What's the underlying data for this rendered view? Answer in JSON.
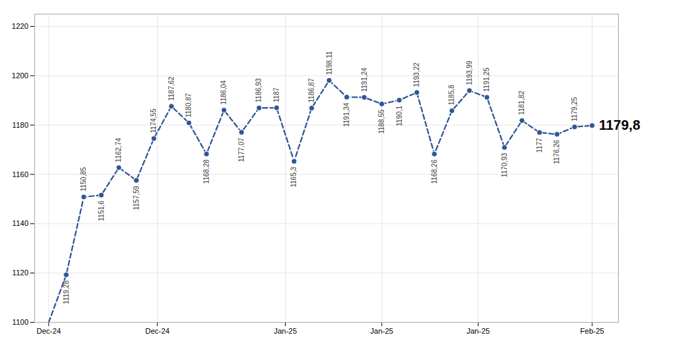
{
  "chart_data": {
    "type": "line",
    "x": [
      0,
      1,
      2,
      3,
      4,
      5,
      6,
      7,
      8,
      9,
      10,
      11,
      12,
      13,
      14,
      15,
      16,
      17,
      18,
      19,
      20,
      21,
      22,
      23,
      24,
      25,
      26,
      27,
      28,
      29,
      30,
      31
    ],
    "values": [
      1100,
      1119.28,
      1150.85,
      1151.6,
      1162.74,
      1157.59,
      1174.55,
      1187.62,
      1180.87,
      1168.28,
      1186.04,
      1177.07,
      1186.93,
      1187,
      1165.3,
      1186.87,
      1198.11,
      1191.34,
      1191.24,
      1188.55,
      1190.1,
      1193.22,
      1168.26,
      1185.8,
      1193.99,
      1191.25,
      1170.93,
      1181.82,
      1177,
      1176.26,
      1179.25,
      1179.8
    ],
    "value_labels": [
      null,
      "1119,28",
      "1150,85",
      "1151,6",
      "1162,74",
      "1157,59",
      "1174,55",
      "1187,62",
      "1180,87",
      "1168,28",
      "1186,04",
      "1177,07",
      "1186,93",
      "1187",
      "1165,3",
      "1186,87",
      "1198,11",
      "1191,34",
      "1191,24",
      "1188,55",
      "1190,1",
      "1193,22",
      "1168,26",
      "1185,8",
      "1193,99",
      "1191,25",
      "1170,93",
      "1181,82",
      "1177",
      "1176,26",
      "1179,25",
      "1179,8"
    ],
    "xlim": [
      -0.8,
      32.5
    ],
    "xticks": [
      {
        "value": 0,
        "label": "Dec-24"
      },
      {
        "value": 6.2,
        "label": "Dec-24"
      },
      {
        "value": 13.5,
        "label": "Jan-25"
      },
      {
        "value": 19.0,
        "label": "Jan-25"
      },
      {
        "value": 24.5,
        "label": "Jan-25"
      },
      {
        "value": 31.0,
        "label": "Feb-25"
      }
    ],
    "ylim": [
      1100,
      1225
    ],
    "yticks": [
      1100,
      1120,
      1140,
      1160,
      1180,
      1200,
      1220
    ],
    "color": "#2F5597",
    "marker": "circle",
    "line_style": "dashed",
    "grid": true,
    "data_labels": true
  }
}
